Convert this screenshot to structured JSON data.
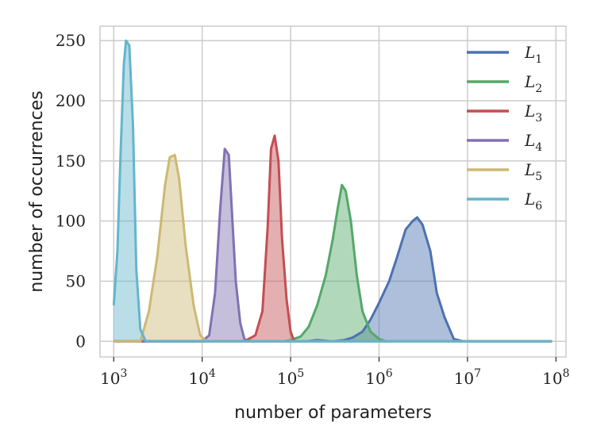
{
  "chart_data": {
    "type": "area",
    "xlabel": "number of parameters",
    "ylabel": "number of occurrences",
    "xscale": "log",
    "xlim": [
      700,
      130000000
    ],
    "ylim": [
      -13,
      262
    ],
    "grid": true,
    "legend_position": "top-right",
    "x_ticks": [
      {
        "value": 1000,
        "base": "10",
        "exp": "3"
      },
      {
        "value": 10000,
        "base": "10",
        "exp": "4"
      },
      {
        "value": 100000,
        "base": "10",
        "exp": "5"
      },
      {
        "value": 1000000,
        "base": "10",
        "exp": "6"
      },
      {
        "value": 10000000,
        "base": "10",
        "exp": "7"
      },
      {
        "value": 100000000,
        "base": "10",
        "exp": "8"
      }
    ],
    "y_ticks": [
      {
        "value": 0,
        "label": "0"
      },
      {
        "value": 50,
        "label": "50"
      },
      {
        "value": 100,
        "label": "100"
      },
      {
        "value": 150,
        "label": "150"
      },
      {
        "value": 200,
        "label": "200"
      },
      {
        "value": 250,
        "label": "250"
      }
    ],
    "series": [
      {
        "name": "L",
        "sub": "1",
        "color": "#4c72b0",
        "points": [
          [
            1000,
            0
          ],
          [
            100000,
            0
          ],
          [
            150000,
            0
          ],
          [
            200000,
            1
          ],
          [
            300000,
            0
          ],
          [
            400000,
            1
          ],
          [
            500000,
            3
          ],
          [
            650000,
            8
          ],
          [
            800000,
            18
          ],
          [
            1000000,
            32
          ],
          [
            1300000,
            50
          ],
          [
            1600000,
            70
          ],
          [
            2000000,
            93
          ],
          [
            2400000,
            100
          ],
          [
            2700000,
            103
          ],
          [
            3100000,
            97
          ],
          [
            3800000,
            75
          ],
          [
            4500000,
            40
          ],
          [
            5500000,
            20
          ],
          [
            7000000,
            2
          ],
          [
            9000000,
            0
          ],
          [
            90000000,
            0
          ]
        ]
      },
      {
        "name": "L",
        "sub": "2",
        "color": "#55a868",
        "points": [
          [
            1000,
            0
          ],
          [
            80000,
            0
          ],
          [
            100000,
            1
          ],
          [
            130000,
            4
          ],
          [
            160000,
            12
          ],
          [
            200000,
            30
          ],
          [
            250000,
            55
          ],
          [
            300000,
            85
          ],
          [
            340000,
            110
          ],
          [
            380000,
            130
          ],
          [
            420000,
            125
          ],
          [
            480000,
            100
          ],
          [
            560000,
            55
          ],
          [
            650000,
            25
          ],
          [
            800000,
            8
          ],
          [
            1000000,
            2
          ],
          [
            1200000,
            0
          ],
          [
            90000000,
            0
          ]
        ]
      },
      {
        "name": "L",
        "sub": "3",
        "color": "#c44e52",
        "points": [
          [
            1000,
            0
          ],
          [
            30000,
            0
          ],
          [
            40000,
            5
          ],
          [
            48000,
            25
          ],
          [
            55000,
            95
          ],
          [
            60000,
            160
          ],
          [
            66000,
            171
          ],
          [
            73000,
            150
          ],
          [
            80000,
            85
          ],
          [
            90000,
            35
          ],
          [
            100000,
            8
          ],
          [
            110000,
            0
          ],
          [
            90000000,
            0
          ]
        ]
      },
      {
        "name": "L",
        "sub": "4",
        "color": "#8172b2",
        "points": [
          [
            1000,
            0
          ],
          [
            10000,
            0
          ],
          [
            12000,
            5
          ],
          [
            14000,
            40
          ],
          [
            16000,
            110
          ],
          [
            18000,
            160
          ],
          [
            20000,
            155
          ],
          [
            22000,
            100
          ],
          [
            24000,
            50
          ],
          [
            27000,
            15
          ],
          [
            30000,
            2
          ],
          [
            33000,
            0
          ],
          [
            90000000,
            0
          ]
        ]
      },
      {
        "name": "L",
        "sub": "5",
        "color": "#ccb974",
        "points": [
          [
            1000,
            0
          ],
          [
            2000,
            0
          ],
          [
            2500,
            25
          ],
          [
            3100,
            70
          ],
          [
            3800,
            130
          ],
          [
            4300,
            153
          ],
          [
            4900,
            155
          ],
          [
            5500,
            135
          ],
          [
            6500,
            80
          ],
          [
            8000,
            30
          ],
          [
            9500,
            5
          ],
          [
            11000,
            0
          ],
          [
            90000000,
            0
          ]
        ]
      },
      {
        "name": "L",
        "sub": "6",
        "color": "#64b5cd",
        "points": [
          [
            1000,
            30
          ],
          [
            1100,
            75
          ],
          [
            1200,
            160
          ],
          [
            1300,
            230
          ],
          [
            1380,
            250
          ],
          [
            1500,
            246
          ],
          [
            1650,
            180
          ],
          [
            1800,
            60
          ],
          [
            2000,
            10
          ],
          [
            2300,
            0
          ],
          [
            90000000,
            0
          ]
        ]
      }
    ]
  }
}
